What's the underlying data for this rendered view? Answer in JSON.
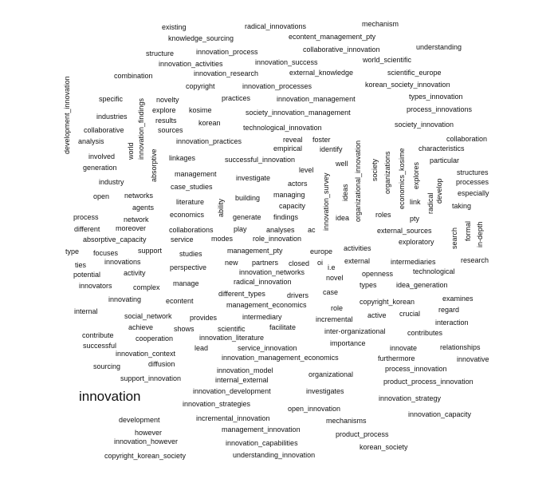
{
  "words": {
    "existing": "existing",
    "radical_innovations": "radical_innovations",
    "mechanism": "mechanism",
    "knowledge_sourcing": "knowledge_sourcing",
    "econtent_management_pty": "econtent_management_pty",
    "structure": "structure",
    "innovation_process": "innovation_process",
    "collaborative_innovation": "collaborative_innovation",
    "understanding": "understanding",
    "innovation_activities": "innovation_activities",
    "innovation_success": "innovation_success",
    "world_scientific": "world_scientific",
    "combination": "combination",
    "innovation_research": "innovation_research",
    "external_knowledge": "external_knowledge",
    "scientific_europe": "scientific_europe",
    "copyright": "copyright",
    "innovation_processes": "innovation_processes",
    "korean_society_innovation": "korean_society_innovation",
    "development_innovation": "development_innovation",
    "specific": "specific",
    "novelty": "novelty",
    "practices": "practices",
    "innovation_management": "innovation_management",
    "types_innovation": "types_innovation",
    "innovation_findings": "innovation_findings",
    "explore": "explore",
    "kosime": "kosime",
    "society_innovation_management": "society_innovation_management",
    "process_innovations": "process_innovations",
    "industries": "industries",
    "results": "results",
    "korean": "korean",
    "society_innovation": "society_innovation",
    "collaborative": "collaborative",
    "world": "world",
    "sources": "sources",
    "technological_innovation": "technological_innovation",
    "analysis": "analysis",
    "innovation_practices": "innovation_practices",
    "reveal": "reveal",
    "foster": "foster",
    "collaboration": "collaboration",
    "empirical": "empirical",
    "identify": "identify",
    "characteristics": "characteristics",
    "involved": "involved",
    "absorptive": "absorptive",
    "linkages": "linkages",
    "successful_innovation": "successful_innovation",
    "organizational_innovation": "organizational_innovation",
    "society": "society",
    "organizations": "organizations",
    "economics_kosime": "economics_kosime",
    "explores": "explores",
    "particular": "particular",
    "generation": "generation",
    "well": "well",
    "level": "level",
    "structures": "structures",
    "management": "management",
    "investigate": "investigate",
    "processes": "processes",
    "industry": "industry",
    "case_studies": "case_studies",
    "actors": "actors",
    "innovation_survey": "innovation_survey",
    "ideas": "ideas",
    "radical": "radical",
    "develop": "develop",
    "especially": "especially",
    "open": "open",
    "networks": "networks",
    "building": "building",
    "managing": "managing",
    "link": "link",
    "agents": "agents",
    "literature": "literature",
    "ability": "ability",
    "capacity": "capacity",
    "taking": "taking",
    "process": "process",
    "economics": "economics",
    "generate": "generate",
    "findings": "findings",
    "idea": "idea",
    "roles": "roles",
    "pty": "pty",
    "network": "network",
    "search": "search",
    "formal": "formal",
    "in-depth": "in-depth",
    "different": "different",
    "moreover": "moreover",
    "collaborations": "collaborations",
    "play": "play",
    "analyses": "analyses",
    "ac": "ac",
    "external_sources": "external_sources",
    "absorptive_capacity": "absorptive_capacity",
    "service": "service",
    "modes": "modes",
    "role_innovation": "role_innovation",
    "exploratory": "exploratory",
    "type": "type",
    "focuses": "focuses",
    "support": "support",
    "studies": "studies",
    "management_pty": "management_pty",
    "europe": "europe",
    "activities": "activities",
    "innovations": "innovations",
    "new": "new",
    "partners": "partners",
    "closed": "closed",
    "oi": "oi",
    "external": "external",
    "intermediaries": "intermediaries",
    "research": "research",
    "ties": "ties",
    "perspective": "perspective",
    "i.e": "i.e",
    "technological": "technological",
    "potential": "potential",
    "activity": "activity",
    "innovation_networks": "innovation_networks",
    "openness": "openness",
    "novel": "novel",
    "innovators": "innovators",
    "complex": "complex",
    "manage": "manage",
    "radical_innovation": "radical_innovation",
    "types": "types",
    "idea_generation": "idea_generation",
    "different_types": "different_types",
    "drivers": "drivers",
    "case": "case",
    "innovating": "innovating",
    "econtent": "econtent",
    "management_economics": "management_economics",
    "copyright_korean": "copyright_korean",
    "examines": "examines",
    "internal": "internal",
    "role": "role",
    "regard": "regard",
    "social_network": "social_network",
    "provides": "provides",
    "intermediary": "intermediary",
    "incremental": "incremental",
    "active": "active",
    "crucial": "crucial",
    "achieve": "achieve",
    "shows": "shows",
    "scientific": "scientific",
    "facilitate": "facilitate",
    "interaction": "interaction",
    "contribute": "contribute",
    "inter-organizational": "inter-organizational",
    "contributes": "contributes",
    "cooperation": "cooperation",
    "innovation_literature": "innovation_literature",
    "importance": "importance",
    "successful": "successful",
    "lead": "lead",
    "service_innovation": "service_innovation",
    "innovate": "innovate",
    "relationships": "relationships",
    "innovation_context": "innovation_context",
    "innovation_management_economics": "innovation_management_economics",
    "furthermore": "furthermore",
    "innovative": "innovative",
    "sourcing": "sourcing",
    "diffusion": "diffusion",
    "process_innovation": "process_innovation",
    "innovation_model": "innovation_model",
    "organizational": "organizational",
    "support_innovation": "support_innovation",
    "internal_external": "internal_external",
    "product_process_innovation": "product_process_innovation",
    "innovation": "innovation",
    "innovation_development": "innovation_development",
    "investigates": "investigates",
    "innovation_strategy": "innovation_strategy",
    "innovation_strategies": "innovation_strategies",
    "open_innovation": "open_innovation",
    "innovation_capacity": "innovation_capacity",
    "development": "development",
    "incremental_innovation": "incremental_innovation",
    "mechanisms": "mechanisms",
    "however": "however",
    "management_innovation": "management_innovation",
    "product_process": "product_process",
    "innovation_however": "innovation_however",
    "innovation_capabilities": "innovation_capabilities",
    "korean_society": "korean_society",
    "copyright_korean_society": "copyright_korean_society",
    "understanding_innovation": "understanding_innovation"
  }
}
